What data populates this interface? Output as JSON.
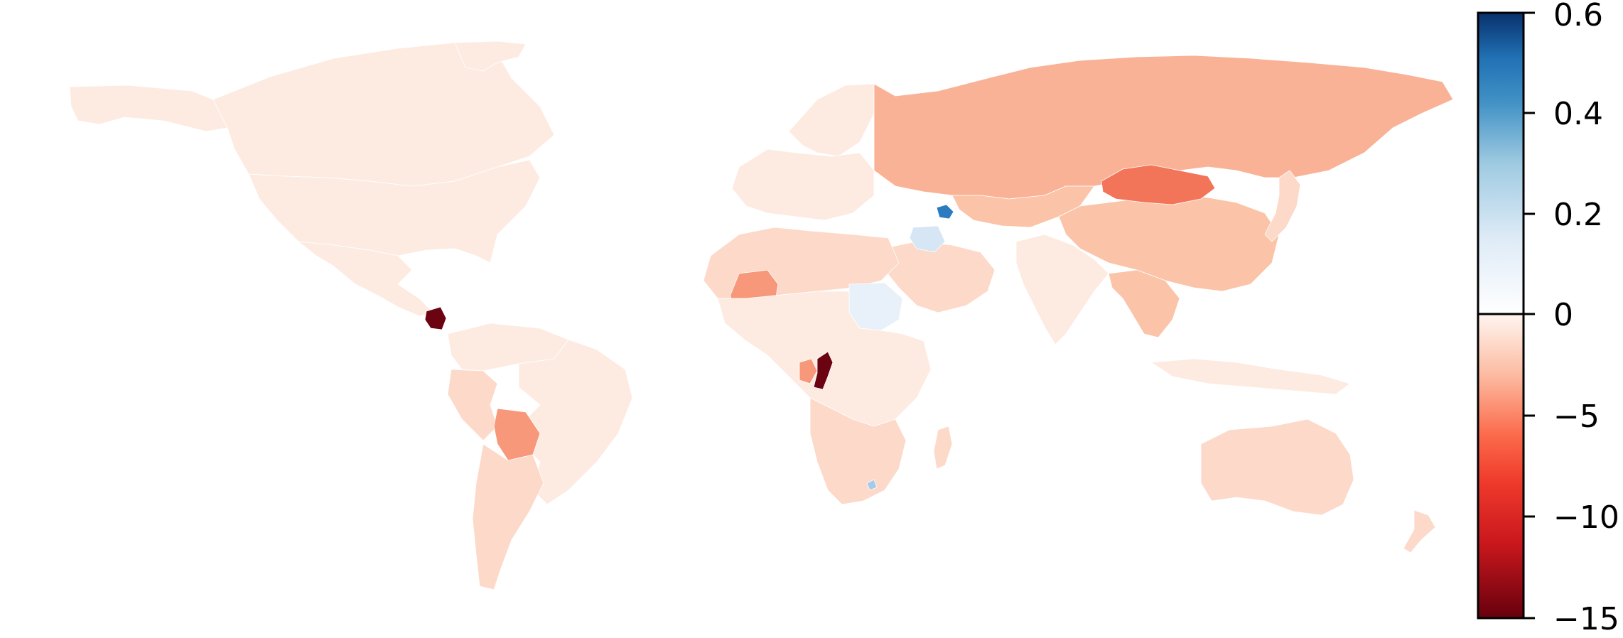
{
  "colorbar": {
    "tick_labels": [
      "0.6",
      "0.4",
      "0.2",
      "0",
      "−5",
      "−10",
      "−15"
    ],
    "positive_range": [
      0,
      0.6
    ],
    "negative_range": [
      -15,
      0
    ],
    "positive_colormap": [
      "#ffffff",
      "#deebf7",
      "#9ecae1",
      "#4292c6",
      "#2171b5",
      "#08306b"
    ],
    "negative_colormap": [
      "#fff5f0",
      "#fcbba1",
      "#fb6a4a",
      "#ef3b2c",
      "#cb181d",
      "#67000d"
    ]
  },
  "colors": {
    "very_light": "#fdebe2",
    "light": "#fcd9c8",
    "light_mid": "#fbc3a8",
    "mid": "#f9b296",
    "mid_strong": "#f7987a",
    "strong": "#f37559",
    "dark_red": "#6b0310",
    "pale_blue": "#e8f0fa",
    "light_blue": "#d6e6f5",
    "mid_blue": "#2c7bbf",
    "small_blue": "#a9c9e8"
  },
  "regions": [
    {
      "name": "Canada",
      "shade": "very_light"
    },
    {
      "name": "Greenland",
      "shade": "very_light"
    },
    {
      "name": "Alaska",
      "shade": "very_light"
    },
    {
      "name": "United States",
      "shade": "very_light"
    },
    {
      "name": "Mexico",
      "shade": "very_light"
    },
    {
      "name": "Nicaragua",
      "shade": "dark_red"
    },
    {
      "name": "Venezuela/Colombia",
      "shade": "very_light"
    },
    {
      "name": "Brazil",
      "shade": "very_light"
    },
    {
      "name": "Peru",
      "shade": "light"
    },
    {
      "name": "Bolivia",
      "shade": "mid_strong"
    },
    {
      "name": "Chile/Argentina",
      "shade": "light"
    },
    {
      "name": "Western Europe",
      "shade": "very_light"
    },
    {
      "name": "Scandinavia",
      "shade": "very_light"
    },
    {
      "name": "Russia",
      "shade": "mid"
    },
    {
      "name": "Central Asia",
      "shade": "light_mid"
    },
    {
      "name": "Mongolia",
      "shade": "strong"
    },
    {
      "name": "China",
      "shade": "light_mid"
    },
    {
      "name": "India",
      "shade": "very_light"
    },
    {
      "name": "Middle East",
      "shade": "light"
    },
    {
      "name": "Syria/Iraq",
      "shade": "light_blue"
    },
    {
      "name": "Azerbaijan",
      "shade": "mid_blue"
    },
    {
      "name": "North Africa",
      "shade": "light"
    },
    {
      "name": "Mali",
      "shade": "mid_strong"
    },
    {
      "name": "Sudan",
      "shade": "pale_blue"
    },
    {
      "name": "Republic of the Congo",
      "shade": "dark_red"
    },
    {
      "name": "Gabon",
      "shade": "mid_strong"
    },
    {
      "name": "Central Africa",
      "shade": "very_light"
    },
    {
      "name": "Southern Africa",
      "shade": "light"
    },
    {
      "name": "Lesotho",
      "shade": "small_blue"
    },
    {
      "name": "Madagascar",
      "shade": "light"
    },
    {
      "name": "Southeast Asia",
      "shade": "light_mid"
    },
    {
      "name": "Indonesia",
      "shade": "very_light"
    },
    {
      "name": "Japan",
      "shade": "light"
    },
    {
      "name": "Australia",
      "shade": "light"
    },
    {
      "name": "New Zealand",
      "shade": "light"
    }
  ]
}
